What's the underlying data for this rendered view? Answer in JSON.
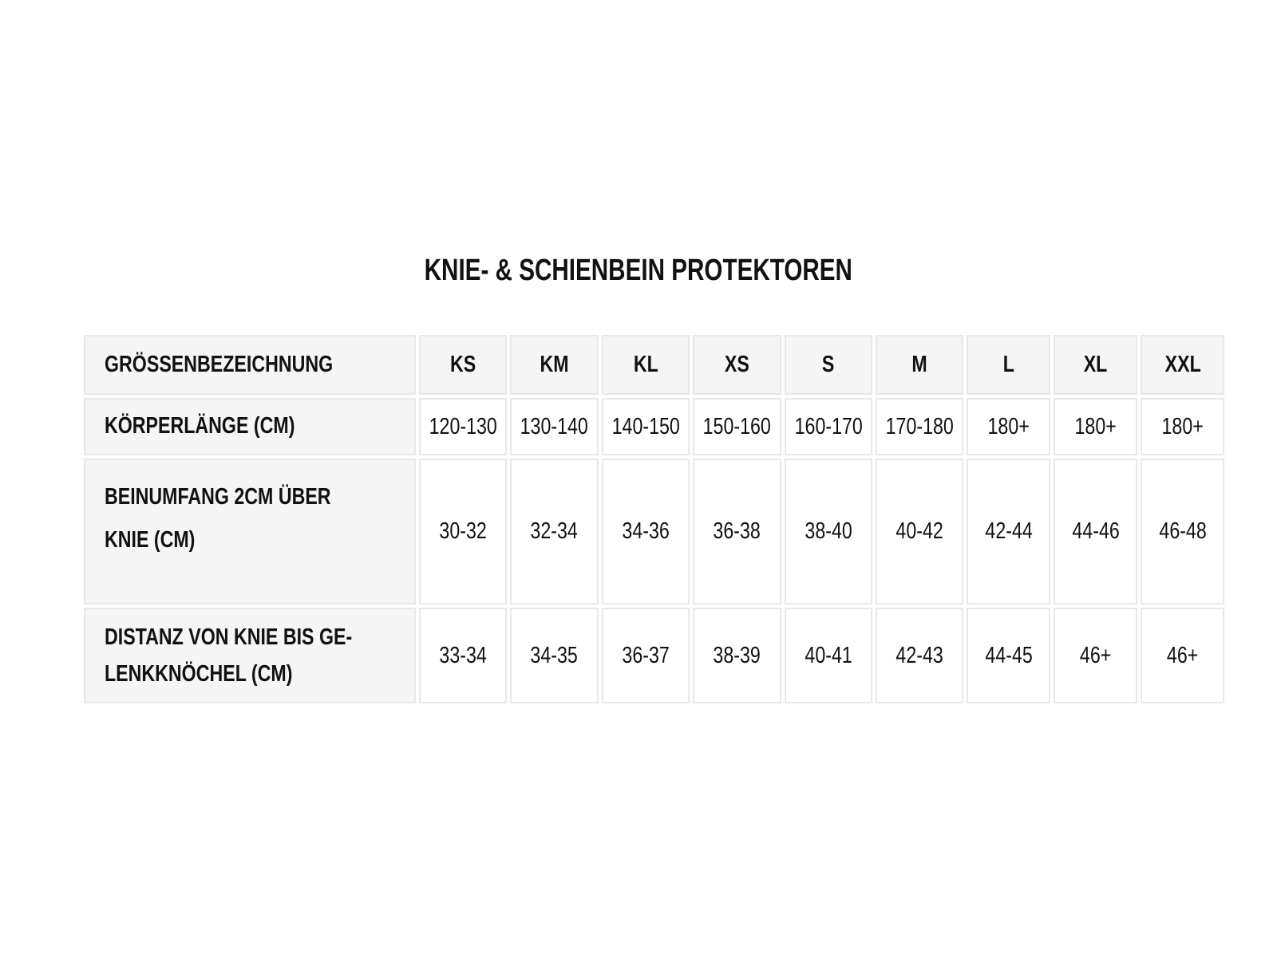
{
  "title": "KNIE- & SCHIENBEIN PROTEKTOREN",
  "table": {
    "header": {
      "label": "GRÖSSENBEZEICHNUNG",
      "sizes": [
        "KS",
        "KM",
        "KL",
        "XS",
        "S",
        "M",
        "L",
        "XL",
        "XXL"
      ]
    },
    "rows": [
      {
        "label": "KÖRPERLÄNGE (CM)",
        "values": [
          "120-130",
          "130-140",
          "140-150",
          "150-160",
          "160-170",
          "170-180",
          "180+",
          "180+",
          "180+"
        ]
      },
      {
        "label_line1": "BEINUMFANG 2CM ÜBER",
        "label_line2": "KNIE (CM)",
        "values": [
          "30-32",
          "32-34",
          "34-36",
          "36-38",
          "38-40",
          "40-42",
          "42-44",
          "44-46",
          "46-48"
        ]
      },
      {
        "label_line1": "DISTANZ VON KNIE BIS GE-",
        "label_line2": "LENKKNÖCHEL (CM)",
        "values": [
          "33-34",
          "34-35",
          "36-37",
          "38-39",
          "40-41",
          "42-43",
          "44-45",
          "46+",
          "46+"
        ]
      }
    ]
  },
  "colors": {
    "border": "#e8e8e8",
    "label_bg": "#f5f5f5",
    "text": "#111111"
  }
}
